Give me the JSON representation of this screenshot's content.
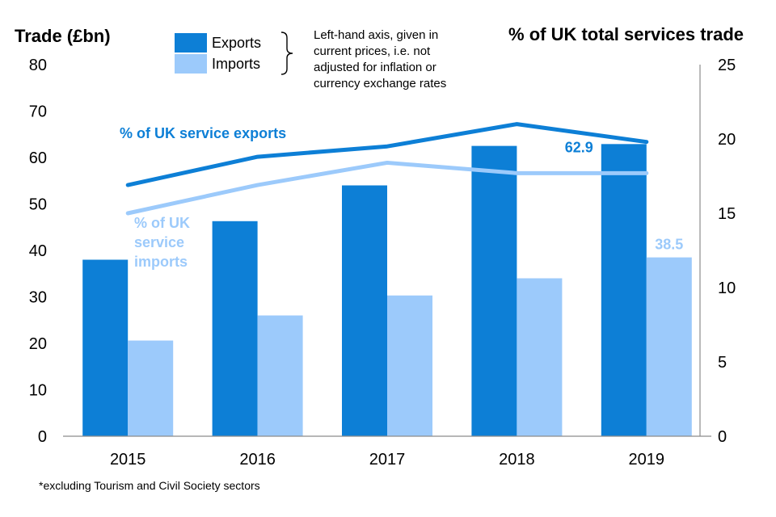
{
  "chart_data": {
    "type": "bar",
    "categories": [
      "2015",
      "2016",
      "2017",
      "2018",
      "2019"
    ],
    "series": [
      {
        "name": "Exports",
        "axis": "left",
        "values": [
          38.0,
          46.3,
          54.0,
          62.5,
          62.9
        ],
        "color": "#0d7fd6"
      },
      {
        "name": "Imports",
        "axis": "left",
        "values": [
          20.6,
          26.0,
          30.3,
          34.0,
          38.5
        ],
        "color": "#9ccafb"
      }
    ],
    "lines": [
      {
        "name": "% of UK service exports",
        "axis": "right",
        "values": [
          16.9,
          18.8,
          19.5,
          21.0,
          19.8
        ],
        "color": "#0d7fd6",
        "label": "% of UK service exports"
      },
      {
        "name": "% of UK service imports",
        "axis": "right",
        "values": [
          15.0,
          16.9,
          18.4,
          17.7,
          17.7
        ],
        "color": "#9ccafb",
        "label_lines": [
          "% of UK",
          "service",
          "imports"
        ]
      }
    ],
    "data_labels": [
      {
        "series": "Exports",
        "category": "2019",
        "text": "62.9"
      },
      {
        "series": "Imports",
        "category": "2019",
        "text": "38.5"
      }
    ],
    "ylabel": "Trade (£bn)",
    "y2label": "% of UK total services trade",
    "ylim": [
      0,
      80
    ],
    "y2lim": [
      0,
      25
    ],
    "yticks": [
      0,
      10,
      20,
      30,
      40,
      50,
      60,
      70,
      80
    ],
    "y2ticks": [
      0,
      5,
      10,
      15,
      20,
      25
    ],
    "legend": {
      "position": "top-center",
      "items": [
        "Exports",
        "Imports"
      ]
    },
    "note": "Left-hand axis, given in current prices, i.e. not adjusted for inflation or currency exchange rates",
    "footnote": "*excluding Tourism and Civil Society sectors",
    "grid": false
  }
}
